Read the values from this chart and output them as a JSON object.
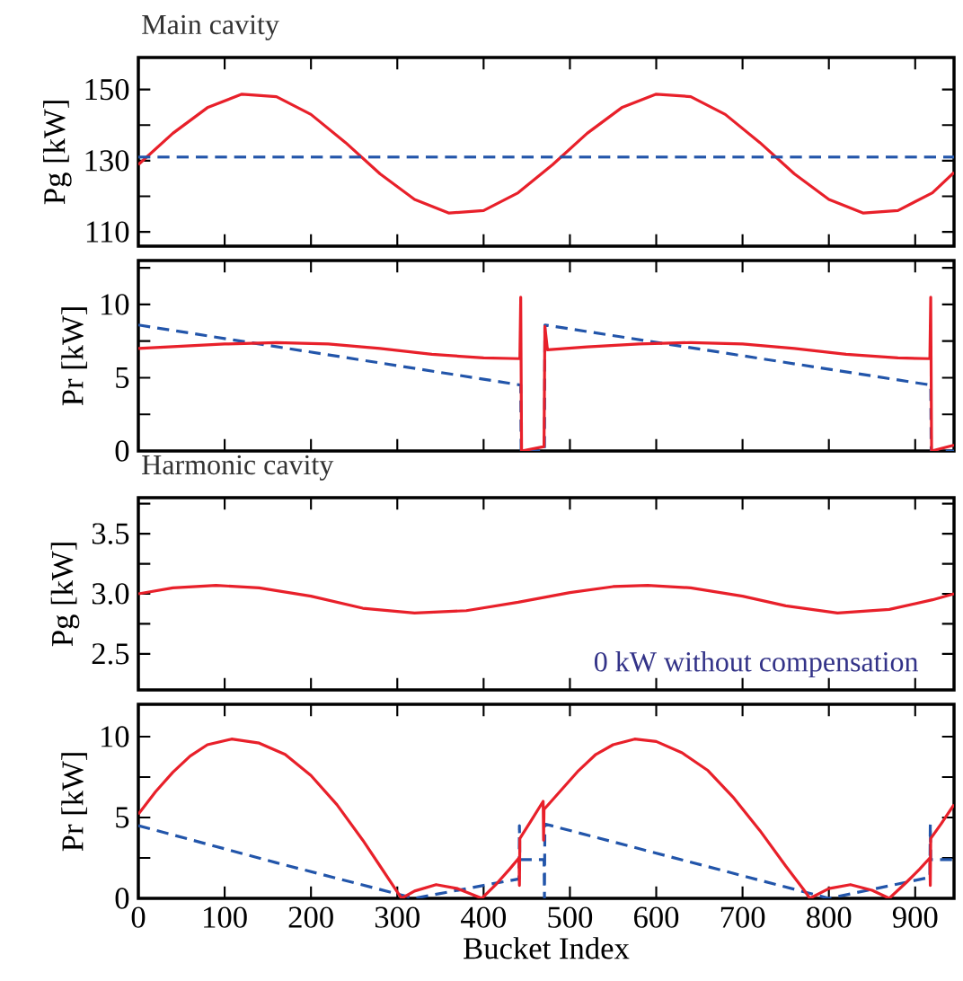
{
  "chart_data": [
    {
      "type": "line",
      "title": "Main cavity",
      "ylabel": "Pg [kW]",
      "xlim": [
        0,
        945
      ],
      "ylim": [
        106,
        159
      ],
      "tick_labels": "y",
      "xticks": [
        0,
        100,
        200,
        300,
        400,
        500,
        600,
        700,
        800,
        900
      ],
      "yticks": [
        110,
        {
          "value": 120,
          "label": null
        },
        130,
        {
          "value": 140,
          "label": null
        },
        150
      ],
      "series": [
        {
          "color": "#e8202a",
          "line_style": "solid",
          "x": [
            0,
            40,
            80,
            120,
            160,
            200,
            240,
            280,
            320,
            360,
            400,
            440,
            480,
            520,
            560,
            600,
            640,
            680,
            720,
            760,
            800,
            840,
            880,
            920,
            945
          ],
          "values": [
            128.9,
            137.7,
            144.9,
            148.7,
            148.0,
            143.0,
            135.1,
            126.3,
            119.1,
            115.3,
            116.0,
            121.0,
            128.9,
            137.7,
            144.9,
            148.7,
            148.0,
            143.0,
            135.1,
            126.3,
            119.1,
            115.3,
            116.0,
            121.0,
            126.7
          ]
        },
        {
          "color": "#2255aa",
          "line_style": "dashed",
          "x": [
            0,
            945
          ],
          "values": [
            131,
            131
          ]
        }
      ]
    },
    {
      "type": "line",
      "ylabel": "Pr [kW]",
      "xlim": [
        0,
        945
      ],
      "ylim": [
        0,
        13
      ],
      "tick_labels": "y",
      "xticks": [
        0,
        100,
        200,
        300,
        400,
        500,
        600,
        700,
        800,
        900
      ],
      "yticks": [
        0,
        {
          "value": 2.5,
          "label": null
        },
        5,
        {
          "value": 7.5,
          "label": null
        },
        10,
        {
          "value": 12.5,
          "label": null
        }
      ],
      "series": [
        {
          "color": "#2255aa",
          "line_style": "dashed",
          "x": [
            0,
            443,
            443.5,
            470.5,
            471,
            918,
            918.5,
            945
          ],
          "values": [
            8.6,
            4.5,
            0,
            0,
            8.6,
            4.5,
            0,
            0
          ]
        },
        {
          "color": "#e8202a",
          "line_style": "solid",
          "x": [
            0,
            50,
            100,
            160,
            220,
            280,
            340,
            400,
            442,
            443,
            444,
            470,
            471,
            474,
            520,
            580,
            640,
            700,
            760,
            820,
            880,
            917,
            918,
            919,
            945
          ],
          "values": [
            7.0,
            7.15,
            7.3,
            7.4,
            7.3,
            7.0,
            6.6,
            6.35,
            6.3,
            10.5,
            0,
            0.3,
            8.5,
            6.9,
            7.1,
            7.3,
            7.4,
            7.3,
            7.0,
            6.6,
            6.35,
            6.3,
            10.5,
            0,
            0.4
          ]
        }
      ]
    },
    {
      "type": "line",
      "title": "Harmonic cavity",
      "ylabel": "Pg [kW]",
      "xlim": [
        0,
        945
      ],
      "ylim": [
        2.2,
        3.8
      ],
      "tick_labels": "y",
      "xticks": [
        0,
        100,
        200,
        300,
        400,
        500,
        600,
        700,
        800,
        900
      ],
      "yticks": [
        2.5,
        {
          "value": 2.75,
          "label": null
        },
        {
          "value": 3,
          "label": "3.0"
        },
        {
          "value": 3.25,
          "label": null
        },
        3.5,
        {
          "value": 3.75,
          "label": null
        }
      ],
      "annotations": [
        "0 kW without compensation"
      ],
      "series": [
        {
          "color": "#e8202a",
          "line_style": "solid",
          "x": [
            0,
            40,
            90,
            140,
            200,
            260,
            320,
            380,
            440,
            500,
            550,
            590,
            640,
            700,
            750,
            810,
            870,
            920,
            945
          ],
          "values": [
            3.0,
            3.05,
            3.07,
            3.05,
            2.98,
            2.88,
            2.84,
            2.86,
            2.93,
            3.01,
            3.06,
            3.07,
            3.05,
            2.98,
            2.9,
            2.84,
            2.87,
            2.95,
            3.0
          ]
        }
      ]
    },
    {
      "type": "line",
      "ylabel": "Pr [kW]",
      "xlabel": "Bucket Index",
      "xlim": [
        0,
        945
      ],
      "ylim": [
        0,
        12
      ],
      "xticks": [
        0,
        100,
        200,
        300,
        400,
        500,
        600,
        700,
        800,
        900
      ],
      "yticks": [
        0,
        {
          "value": 2.5,
          "label": null
        },
        5,
        {
          "value": 7.5,
          "label": null
        },
        10
      ],
      "series": [
        {
          "color": "#2255aa",
          "line_style": "dashed",
          "x": [
            0,
            160,
            320,
            400,
            441,
            441.5,
            442,
            470,
            470.5,
            471,
            800,
            917,
            917.5,
            918,
            945
          ],
          "values": [
            4.5,
            2.2,
            0,
            0.8,
            1.2,
            4.5,
            2.4,
            2.4,
            0,
            4.6,
            0,
            1.3,
            4.6,
            2.4,
            2.4
          ]
        },
        {
          "color": "#e8202a",
          "line_style": "solid",
          "x": [
            0,
            20,
            40,
            60,
            80,
            108,
            140,
            170,
            200,
            230,
            260,
            280,
            300,
            305,
            320,
            345,
            370,
            398,
            415,
            430,
            441,
            441.5,
            442,
            455,
            469,
            469.5,
            470,
            490,
            510,
            530,
            550,
            575,
            600,
            630,
            660,
            690,
            720,
            750,
            770,
            778,
            800,
            825,
            850,
            870,
            890,
            905,
            917,
            917.5,
            918,
            930,
            945
          ],
          "values": [
            5.2,
            6.6,
            7.8,
            8.8,
            9.5,
            9.85,
            9.6,
            8.9,
            7.6,
            5.8,
            3.6,
            2.0,
            0.4,
            0,
            0.45,
            0.85,
            0.6,
            0,
            0.9,
            1.8,
            2.5,
            0.8,
            3.7,
            4.8,
            6.0,
            3.6,
            5.5,
            6.7,
            7.9,
            8.9,
            9.5,
            9.85,
            9.7,
            9.0,
            7.9,
            6.2,
            4.2,
            2.0,
            0.6,
            0,
            0.6,
            0.85,
            0.5,
            0,
            1.0,
            1.8,
            2.5,
            0.8,
            3.7,
            4.6,
            5.8
          ]
        }
      ]
    }
  ]
}
